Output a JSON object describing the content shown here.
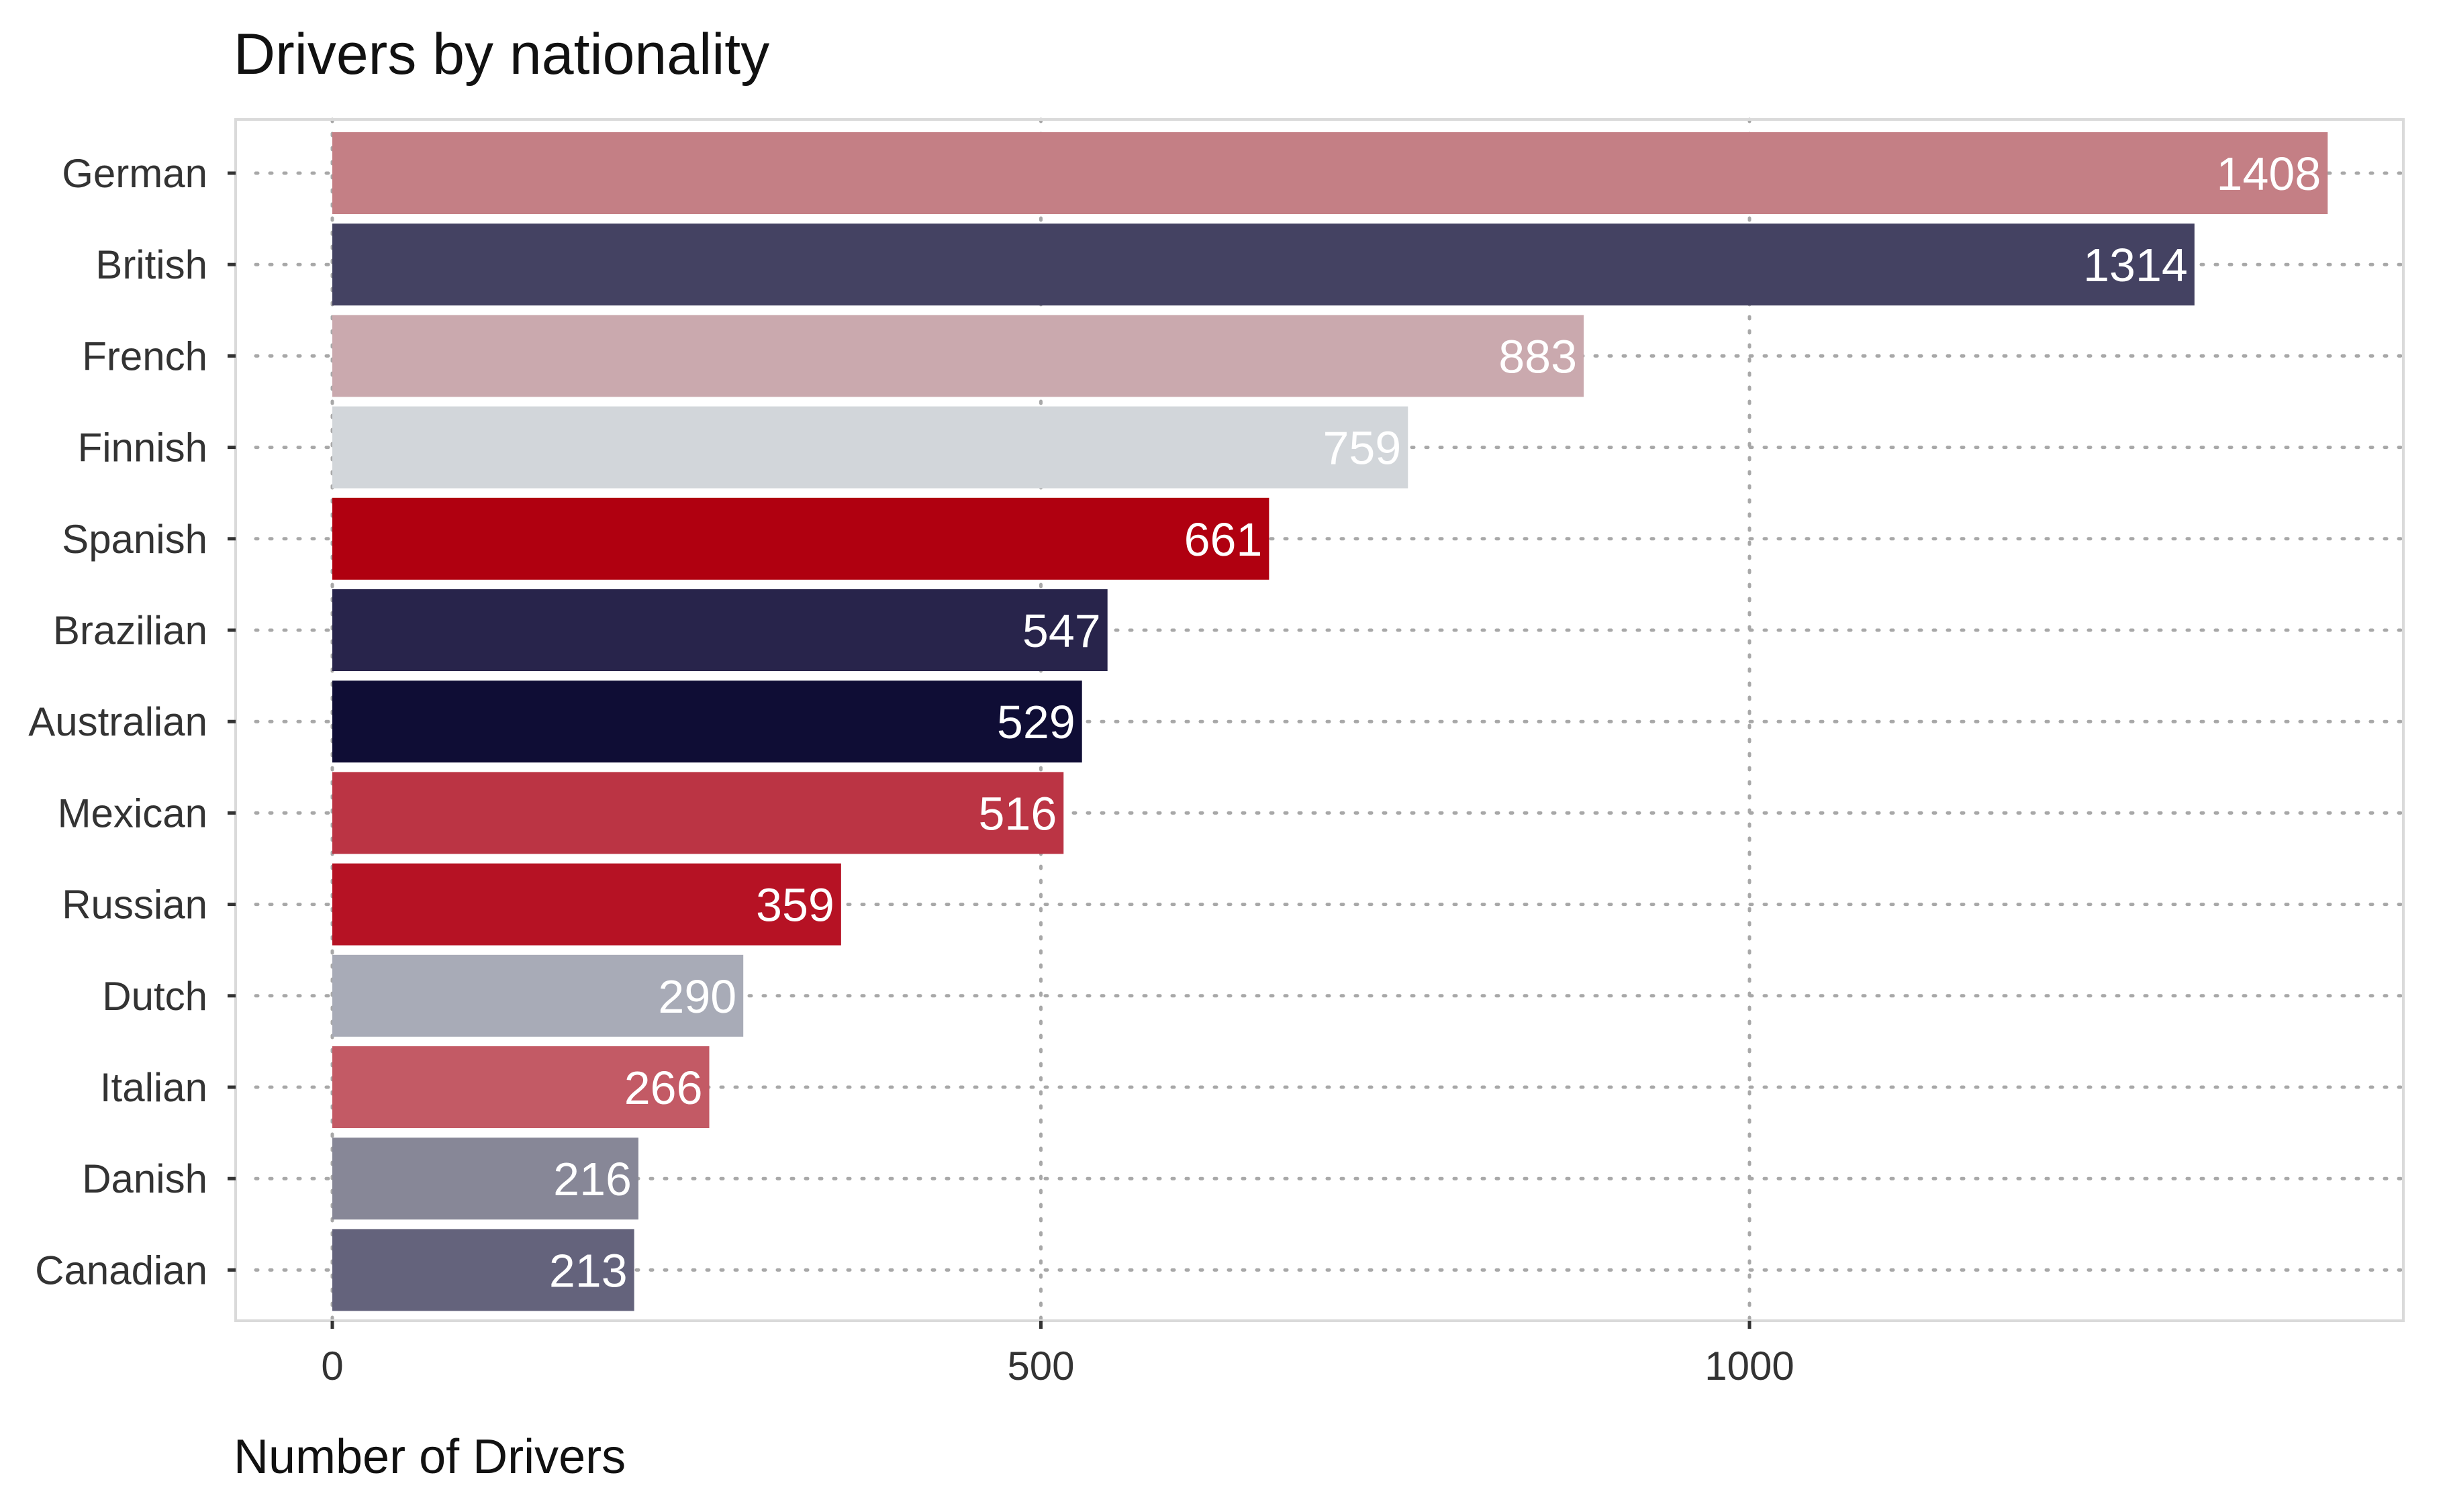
{
  "chart_data": {
    "type": "bar",
    "orientation": "horizontal",
    "title": "Drivers by nationality",
    "xlabel": "Number of Drivers",
    "ylabel": "",
    "xlim": [
      -140,
      1460
    ],
    "xticks": [
      0,
      500,
      1000
    ],
    "grid": true,
    "legend": "none",
    "categories": [
      "German",
      "British",
      "French",
      "Finnish",
      "Spanish",
      "Brazilian",
      "Australian",
      "Mexican",
      "Russian",
      "Dutch",
      "Italian",
      "Danish",
      "Canadian"
    ],
    "values": [
      1408,
      1314,
      883,
      759,
      661,
      547,
      529,
      516,
      359,
      290,
      266,
      216,
      213
    ],
    "colors": [
      "#c47f85",
      "#444262",
      "#caa9ae",
      "#d2d6da",
      "#b00010",
      "#28244b",
      "#0f0d35",
      "#bb3444",
      "#b61224",
      "#a8abb7",
      "#c35a65",
      "#878797",
      "#64637c"
    ]
  }
}
